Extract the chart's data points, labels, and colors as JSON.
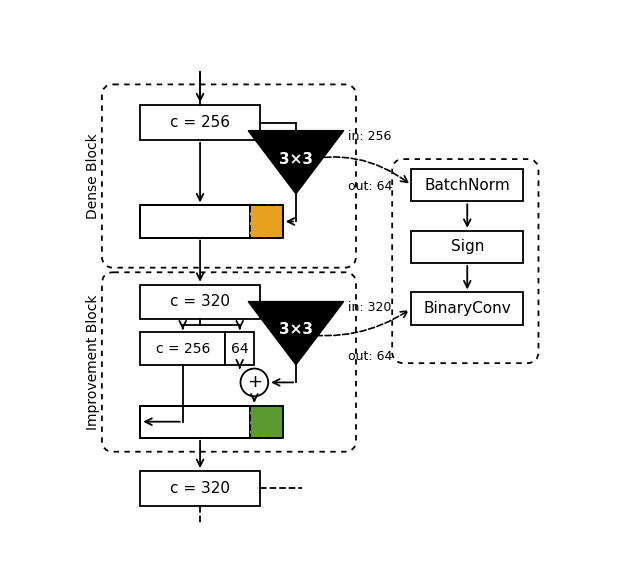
{
  "fig_width": 6.3,
  "fig_height": 5.88,
  "dpi": 100,
  "bg_color": "#ffffff",
  "dense_block_label": "Dense Block",
  "improvement_block_label": "Improvement Block",
  "right_boxes": [
    "BatchNorm",
    "Sign",
    "BinaryConv"
  ],
  "orange_color": "#E8A020",
  "green_color": "#5A9A30",
  "arrow_lw": 1.3,
  "dotted_lw": 1.3
}
